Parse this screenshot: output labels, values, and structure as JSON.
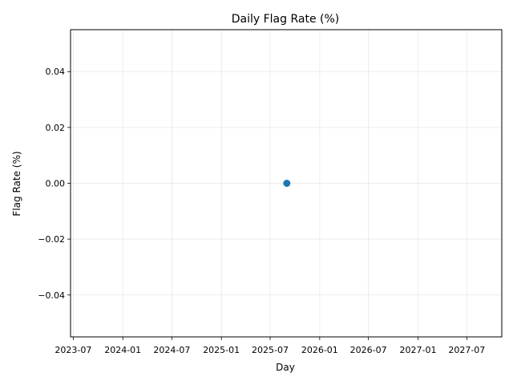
{
  "chart_data": {
    "type": "scatter",
    "title": "Daily Flag Rate (%)",
    "xlabel": "Day",
    "ylabel": "Flag Rate (%)",
    "x_ticks": [
      "2023-07",
      "2024-01",
      "2024-07",
      "2025-01",
      "2025-07",
      "2026-01",
      "2026-07",
      "2027-01",
      "2027-07"
    ],
    "y_ticks": [
      "0.04",
      "0.02",
      "0.00",
      "−0.02",
      "−0.04"
    ],
    "y_tick_values": [
      0.04,
      0.02,
      0.0,
      -0.02,
      -0.04
    ],
    "xlim": [
      "2023-06-21",
      "2027-11-08"
    ],
    "ylim": [
      -0.055,
      0.055
    ],
    "grid": true,
    "points": [
      {
        "x": "2025-09-01",
        "y": 0.0
      }
    ],
    "point_color": "#1f77b4"
  }
}
